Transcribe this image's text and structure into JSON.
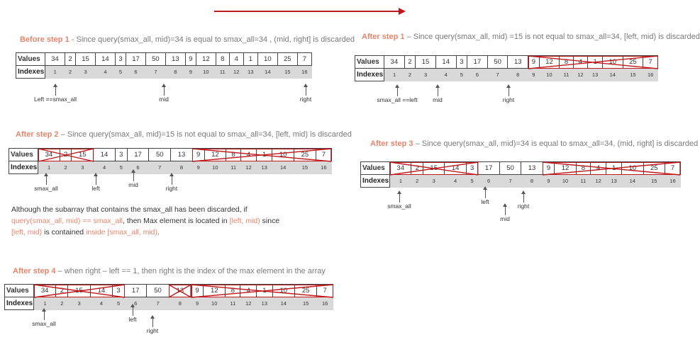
{
  "step_before1": {
    "step": "Before step 1",
    "desc": " - Since  query(smax_all, mid)=34 is equal to smax_all=34 , (mid, right] is discarded",
    "markers": [
      "Left ==smax_all",
      "mid",
      "right"
    ]
  },
  "step_after1": {
    "step": "After step 1",
    "desc": " – Since  query(smax_all, mid) =15  is not equal to smax_all=34, [left, mid) is discarded",
    "markers": [
      "smax_all ==left",
      "mid",
      "right"
    ]
  },
  "step_after2": {
    "step": "After step 2",
    "desc": " – Since  query(smax_all, mid)=15  is not equal to smax_all=34, [left, mid) is discarded",
    "markers": [
      "smax_all",
      "left",
      "mid",
      "right"
    ]
  },
  "step_after3": {
    "step": "After step 3",
    "desc": " – Since  query(smax_all, mid)=34  is equal to smax_all=34, (mid, right] is discarded",
    "markers": [
      "smax_all",
      "left",
      "mid",
      "right"
    ]
  },
  "step_after4": {
    "step": "After step 4",
    "desc": " – when  right – left == 1, then right is the index of the max element in the array",
    "markers": [
      "smax_all",
      "left",
      "right"
    ]
  },
  "labels": {
    "values": "Values",
    "indexes": "Indexes"
  },
  "array": {
    "values": [
      "34",
      "2",
      "15",
      "14",
      "3",
      "17",
      "50",
      "13",
      "9",
      "12",
      "8",
      "4",
      "1",
      "10",
      "25",
      "7"
    ],
    "indexes": [
      "1",
      "2",
      "3",
      "4",
      "5",
      "6",
      "7",
      "8",
      "9",
      "10",
      "11",
      "12",
      "13",
      "14",
      "15",
      "16"
    ]
  },
  "note": {
    "line1": "Although the subarray that contains the smax_all has been discarded, if",
    "line2_hl": "query(smax_all, mid) == smax_all",
    "line2_rest": ", then Max element is located in ",
    "line2_hl2": "[left, mid)",
    "line2_end": " since",
    "line3_hl": "[left, mid)",
    "line3_mid": " is contained ",
    "line3_hl2": "inside [smax_all, mid)",
    "line3_end": "."
  },
  "colors": {
    "arrow": "#c0181b",
    "cross": "#c0181b",
    "step": "#e8846b",
    "index_bg": "#d9d9d9"
  }
}
